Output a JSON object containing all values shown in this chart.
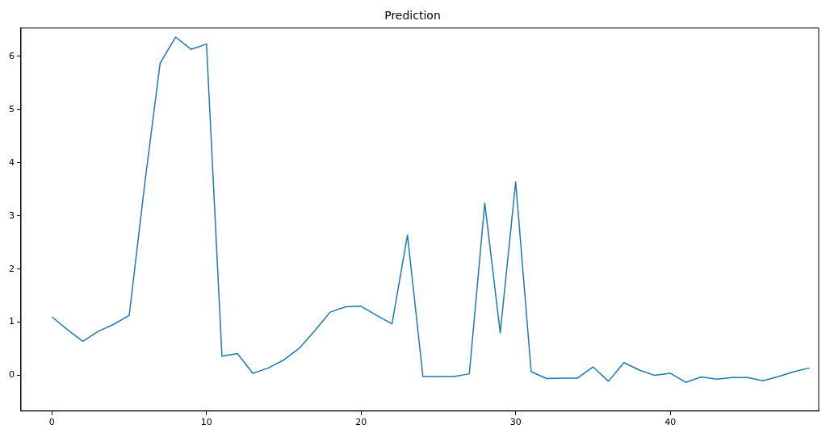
{
  "chart_data": {
    "type": "line",
    "title": "Prediction",
    "x": [
      0,
      1,
      2,
      3,
      4,
      5,
      6,
      7,
      8,
      9,
      10,
      11,
      12,
      13,
      14,
      15,
      16,
      17,
      18,
      19,
      20,
      21,
      22,
      23,
      24,
      25,
      26,
      27,
      28,
      29,
      30,
      31,
      32,
      33,
      34,
      35,
      36,
      37,
      38,
      39,
      40,
      41,
      42,
      43,
      44,
      45,
      46,
      47,
      48,
      49
    ],
    "series": [
      {
        "color": "#1f77b4",
        "values": [
          1.1,
          0.86,
          0.64,
          0.83,
          0.96,
          1.13,
          3.59,
          5.87,
          6.36,
          6.13,
          6.23,
          0.36,
          0.41,
          0.04,
          0.14,
          0.29,
          0.51,
          0.84,
          1.19,
          1.29,
          1.3,
          1.13,
          0.97,
          2.64,
          -0.02,
          -0.02,
          -0.02,
          0.03,
          3.24,
          0.8,
          3.64,
          0.07,
          -0.06,
          -0.05,
          -0.05,
          0.16,
          -0.11,
          0.24,
          0.1,
          0.0,
          0.04,
          -0.13,
          -0.03,
          -0.07,
          -0.04,
          -0.04,
          -0.1,
          -0.02,
          0.07,
          0.14
        ]
      }
    ],
    "xlim": [
      -2,
      49.6
    ],
    "ylim": [
      -0.67,
      6.53
    ],
    "xticks": [
      0,
      10,
      20,
      30,
      40
    ],
    "yticks": [
      0,
      1,
      2,
      3,
      4,
      5,
      6
    ],
    "grid": false,
    "legend": false,
    "marker": "none",
    "line_style": "solid"
  }
}
